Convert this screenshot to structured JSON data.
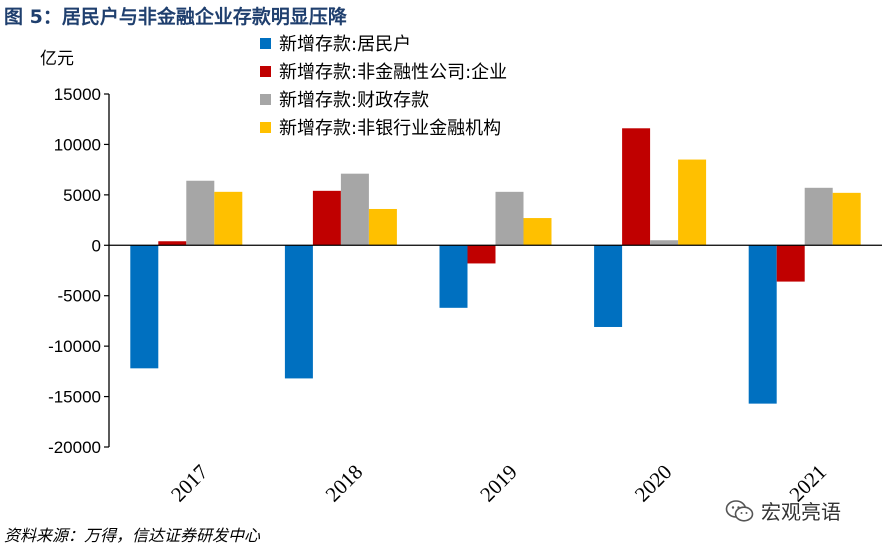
{
  "figure": {
    "title": "图 5：居民户与非金融企业存款明显压降",
    "source": "资料来源：万得，信达证券研发中心",
    "watermark": "宏观亮语"
  },
  "chart_data": {
    "type": "bar",
    "unit_label": "亿元",
    "categories": [
      "2017",
      "2018",
      "2019",
      "2020",
      "2021"
    ],
    "series": [
      {
        "name": "新增存款:居民户",
        "color": "#0070C0",
        "values": [
          -12200,
          -13200,
          -6200,
          -8100,
          -15700
        ]
      },
      {
        "name": "新增存款:非金融性公司:企业",
        "color": "#C00000",
        "values": [
          400,
          5400,
          -1800,
          11600,
          -3600
        ]
      },
      {
        "name": "新增存款:财政存款",
        "color": "#A6A6A6",
        "values": [
          6400,
          7100,
          5300,
          500,
          5700
        ]
      },
      {
        "name": "新增存款:非银行业金融机构",
        "color": "#FFC000",
        "values": [
          5300,
          3600,
          2700,
          8500,
          5200
        ]
      }
    ],
    "ylim": [
      -20000,
      15000
    ],
    "yticks": [
      15000,
      10000,
      5000,
      0,
      -5000,
      -10000,
      -15000,
      -20000
    ],
    "legend_position": "top-center",
    "grid": false
  }
}
